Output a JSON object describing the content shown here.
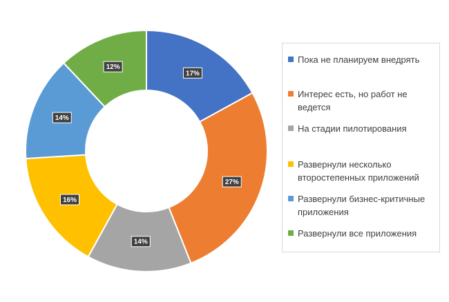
{
  "chart_data": {
    "type": "pie",
    "donut": true,
    "categories": [
      "Пока не планируем внедрять",
      "Интерес есть, но работ не ведется",
      "На стадии пилотирования",
      "Развернули несколько второстепенных приложений",
      "Развернули бизнес-критичные приложения",
      "Развернули все приложения"
    ],
    "values": [
      17,
      27,
      14,
      16,
      14,
      12
    ],
    "data_labels": [
      "17%",
      "27%",
      "14%",
      "16%",
      "14%",
      "12%"
    ],
    "colors": [
      "#4472c4",
      "#ed7d31",
      "#a5a5a5",
      "#ffc000",
      "#5b9bd5",
      "#70ad47"
    ],
    "legend": {
      "placement": "right",
      "lines": [
        [
          "Пока не планируем внедрять"
        ],
        [
          "Интерес есть, но работ не",
          "ведется"
        ],
        [
          "На стадии пилотирования"
        ],
        [
          "Развернули несколько",
          "второстепенных приложений"
        ],
        [
          "Развернули бизнес-критичные",
          "приложения"
        ],
        [
          "Развернули все приложения"
        ]
      ]
    }
  }
}
